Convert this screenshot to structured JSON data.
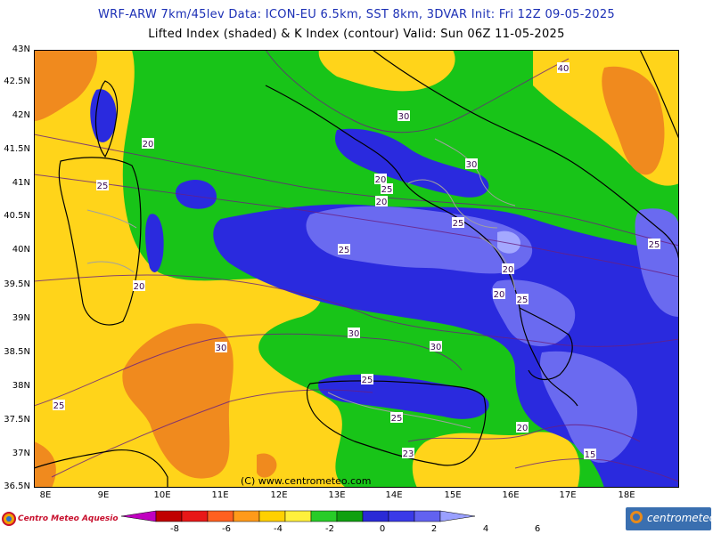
{
  "header": {
    "line1": "WRF-ARW 7km/45lev   Data: ICON-EU 6.5km, SST 8km, 3DVAR   Init: Fri 12Z 09-05-2025",
    "line2": "Lifted Index (shaded) & K Index (contour)  Valid: Sun 06Z 11-05-2025"
  },
  "credit": "(C) www.centrometeo.com",
  "lat_labels": [
    "43N",
    "42.5N",
    "42N",
    "41.5N",
    "41N",
    "40.5N",
    "40N",
    "39.5N",
    "39N",
    "38.5N",
    "38N",
    "37.5N",
    "37N",
    "36.5N"
  ],
  "lon_labels": [
    "8E",
    "9E",
    "10E",
    "11E",
    "12E",
    "13E",
    "14E",
    "15E",
    "16E",
    "17E",
    "18E"
  ],
  "contour_labels": [
    "40",
    "30",
    "20",
    "25",
    "30",
    "20",
    "25",
    "20",
    "25",
    "30",
    "25",
    "20",
    "20",
    "25",
    "25",
    "20",
    "30",
    "30",
    "25",
    "25",
    "23",
    "20",
    "15",
    "25"
  ],
  "colorbar": {
    "labels": [
      "-8",
      "-6",
      "-4",
      "-2",
      "0",
      "2",
      "4",
      "6"
    ],
    "colors": [
      "#c000c0",
      "#c00000",
      "#e81818",
      "#ff6020",
      "#ff9a1a",
      "#ffd000",
      "#fff03c",
      "#28cc28",
      "#10a010",
      "#2a2ad6",
      "#3a3ae8",
      "#6262f0",
      "#9aa0ff"
    ]
  },
  "logos": {
    "left": "Centro Meteo Aquesio",
    "right": "centrometeo"
  },
  "colors": {
    "li_lt_neg2": "#f08a1e",
    "li_neg2_0": "#ffd41a",
    "li_0_2": "#18c418",
    "li_2_4": "#2a2ade",
    "li_4_6": "#6a6af0",
    "li_gt6": "#a4a8ff",
    "contour": "#6a2080",
    "coast": "#000000",
    "border": "#a0a0a0"
  }
}
